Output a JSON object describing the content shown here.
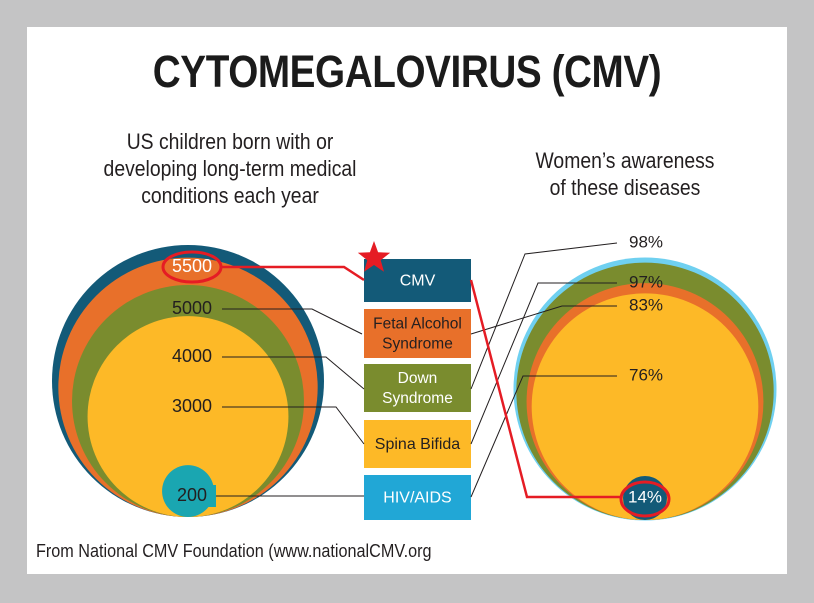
{
  "title": "CYTOMEGALOVIRUS (CMV)",
  "left_subtitle": [
    "US children born with or",
    "developing long-term medical",
    "conditions each year"
  ],
  "right_subtitle": [
    "Women’s awareness",
    "of these diseases"
  ],
  "footer": "From National CMV Foundation (www.nationalCMV.org",
  "colors": {
    "cmv": "#135a78",
    "fetal_alcohol": "#e8702a",
    "down_syndrome": "#7a8c2e",
    "spina_bifida": "#fdb927",
    "hiv_aids": "#21a7d6",
    "highlight": "#e51c24",
    "small_circle": "#1aa6b1"
  },
  "chart_data": {
    "type": "nested-circles",
    "conditions": [
      {
        "name": "CMV",
        "children_per_year": 5500,
        "children_label": "5500",
        "awareness_pct": 14,
        "awareness_label": "14%"
      },
      {
        "name": "Fetal Alcohol Syndrome",
        "label_lines": [
          "Fetal Alcohol",
          "Syndrome"
        ],
        "children_per_year": 5000,
        "children_label": "5000",
        "awareness_pct": 98,
        "awareness_label": "98%"
      },
      {
        "name": "Down Syndrome",
        "label_lines": [
          "Down",
          "Syndrome"
        ],
        "children_per_year": 4000,
        "children_label": "4000",
        "awareness_pct": 97,
        "awareness_label": "97%"
      },
      {
        "name": "Spina Bifida",
        "label_lines": [
          "Spina Bifida"
        ],
        "children_per_year": 3000,
        "children_label": "3000",
        "awareness_pct": 76,
        "awareness_label": "76%"
      },
      {
        "name": "HIV/AIDS",
        "label_lines": [
          "HIV/AIDS"
        ],
        "children_per_year": 200,
        "children_label": "200",
        "awareness_pct": 83,
        "awareness_label": "83%"
      }
    ]
  }
}
